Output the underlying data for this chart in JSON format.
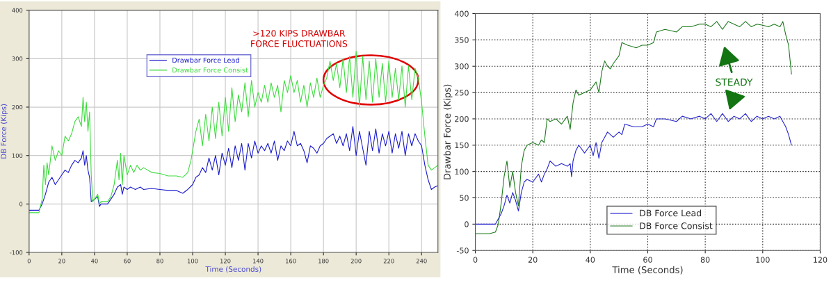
{
  "chart_data": [
    {
      "type": "line",
      "xlabel": "Time (Seconds)",
      "ylabel": "DB Force (Kips)",
      "xlim": [
        0,
        250
      ],
      "xticks": [
        0,
        20,
        40,
        60,
        80,
        100,
        120,
        140,
        160,
        180,
        200,
        220,
        240
      ],
      "ylim": [
        -100,
        400
      ],
      "yticks": [
        -100,
        0,
        100,
        200,
        300,
        400
      ],
      "grid": true,
      "legend": "top left",
      "annotations": [
        ">120 KIPS DRAWBAR\nFORCE FLUCTUATIONS"
      ],
      "series": [
        {
          "name": "Drawbar Force Lead",
          "color": "#1a1acc",
          "x": [
            0,
            6,
            8,
            10,
            12,
            14,
            16,
            18,
            20,
            22,
            24,
            26,
            28,
            30,
            32,
            33,
            34,
            35,
            36,
            37,
            38,
            40,
            42,
            43,
            44,
            48,
            52,
            54,
            56,
            57,
            58,
            60,
            62,
            65,
            68,
            70,
            75,
            80,
            85,
            90,
            94,
            97,
            100,
            102,
            104,
            106,
            108,
            110,
            112,
            114,
            116,
            118,
            120,
            122,
            124,
            126,
            128,
            130,
            132,
            134,
            136,
            138,
            140,
            142,
            144,
            146,
            148,
            150,
            152,
            154,
            156,
            158,
            160,
            162,
            164,
            166,
            168,
            170,
            172,
            174,
            176,
            178,
            180,
            182,
            184,
            186,
            188,
            190,
            192,
            194,
            196,
            198,
            200,
            202,
            204,
            206,
            208,
            210,
            212,
            214,
            216,
            218,
            220,
            222,
            224,
            226,
            228,
            230,
            232,
            234,
            236,
            238,
            240,
            242,
            244,
            246,
            248,
            250
          ],
          "values": [
            -13,
            -13,
            0,
            20,
            45,
            55,
            40,
            50,
            60,
            70,
            65,
            80,
            90,
            85,
            95,
            110,
            80,
            100,
            70,
            55,
            5,
            10,
            15,
            -5,
            0,
            0,
            20,
            35,
            40,
            20,
            35,
            30,
            35,
            30,
            35,
            30,
            32,
            30,
            28,
            28,
            22,
            30,
            40,
            55,
            60,
            75,
            65,
            95,
            70,
            100,
            60,
            105,
            80,
            115,
            75,
            120,
            90,
            125,
            70,
            125,
            95,
            130,
            105,
            120,
            110,
            125,
            105,
            130,
            90,
            120,
            110,
            130,
            120,
            150,
            120,
            125,
            110,
            85,
            120,
            115,
            105,
            120,
            125,
            135,
            140,
            145,
            125,
            140,
            120,
            145,
            110,
            160,
            100,
            150,
            115,
            80,
            150,
            110,
            155,
            105,
            145,
            120,
            150,
            105,
            145,
            115,
            150,
            100,
            145,
            120,
            145,
            130,
            120,
            80,
            50,
            30,
            35,
            38
          ]
        },
        {
          "name": "Drawbar Force Consist",
          "color": "#3ddc3d",
          "x": [
            0,
            6,
            8,
            9,
            10,
            11,
            12,
            14,
            16,
            18,
            20,
            22,
            24,
            26,
            28,
            30,
            32,
            33,
            34,
            35,
            36,
            37,
            38,
            39,
            40,
            42,
            43,
            44,
            48,
            50,
            52,
            54,
            55,
            56,
            57,
            58,
            60,
            62,
            64,
            66,
            68,
            70,
            75,
            80,
            85,
            90,
            94,
            97,
            99,
            100,
            102,
            104,
            106,
            108,
            110,
            112,
            114,
            116,
            118,
            120,
            122,
            124,
            126,
            128,
            130,
            132,
            134,
            136,
            138,
            140,
            142,
            144,
            146,
            148,
            150,
            152,
            154,
            156,
            158,
            160,
            162,
            164,
            166,
            168,
            170,
            172,
            174,
            176,
            178,
            180,
            182,
            184,
            186,
            188,
            190,
            192,
            194,
            196,
            198,
            200,
            202,
            204,
            206,
            208,
            210,
            212,
            214,
            216,
            218,
            220,
            222,
            224,
            226,
            228,
            230,
            232,
            234,
            236,
            238,
            240,
            242,
            244,
            246,
            248,
            250
          ],
          "values": [
            -18,
            -18,
            10,
            80,
            40,
            85,
            60,
            120,
            90,
            110,
            100,
            140,
            130,
            145,
            170,
            180,
            160,
            220,
            170,
            210,
            150,
            190,
            60,
            5,
            10,
            20,
            0,
            5,
            5,
            15,
            40,
            90,
            50,
            105,
            40,
            100,
            60,
            80,
            65,
            80,
            70,
            75,
            65,
            63,
            58,
            58,
            55,
            65,
            90,
            110,
            150,
            175,
            120,
            185,
            130,
            200,
            135,
            210,
            140,
            220,
            150,
            240,
            170,
            225,
            190,
            250,
            180,
            255,
            200,
            230,
            210,
            245,
            210,
            250,
            220,
            245,
            190,
            255,
            230,
            265,
            230,
            255,
            210,
            245,
            200,
            250,
            220,
            260,
            220,
            245,
            260,
            295,
            255,
            290,
            240,
            300,
            230,
            305,
            220,
            315,
            200,
            305,
            215,
            295,
            210,
            300,
            220,
            290,
            210,
            295,
            220,
            280,
            215,
            285,
            200,
            285,
            215,
            280,
            260,
            210,
            140,
            80,
            70,
            75,
            80
          ]
        }
      ]
    },
    {
      "type": "line",
      "xlabel": "Time (Seconds)",
      "ylabel": "Drawbar Force (Kips)",
      "xlim": [
        0,
        120
      ],
      "xticks": [
        0,
        20,
        40,
        60,
        80,
        100,
        120
      ],
      "ylim": [
        -50,
        400
      ],
      "yticks": [
        -50,
        0,
        50,
        100,
        150,
        200,
        250,
        300,
        350,
        400
      ],
      "grid": true,
      "legend": "bottom",
      "annotations": [
        "STEADY"
      ],
      "series": [
        {
          "name": "DB Force Lead",
          "color": "#2424cc",
          "x": [
            0,
            7,
            8,
            9,
            10,
            11,
            12,
            13,
            14,
            15,
            16,
            17,
            18,
            20,
            22,
            23,
            24,
            25,
            26,
            28,
            30,
            32,
            33,
            33.5,
            34,
            35,
            36,
            38,
            40,
            41,
            42,
            43,
            44,
            45,
            46,
            48,
            50,
            51,
            52,
            55,
            58,
            60,
            62,
            63,
            66,
            70,
            72,
            75,
            78,
            80,
            82,
            84,
            86,
            88,
            90,
            92,
            94,
            96,
            98,
            100,
            102,
            104,
            106,
            107,
            108,
            109,
            110
          ],
          "values": [
            0,
            0,
            10,
            20,
            35,
            55,
            40,
            60,
            45,
            25,
            60,
            80,
            85,
            80,
            95,
            80,
            95,
            105,
            120,
            110,
            115,
            110,
            115,
            90,
            120,
            140,
            150,
            135,
            150,
            130,
            155,
            125,
            155,
            165,
            175,
            165,
            175,
            170,
            190,
            185,
            185,
            190,
            185,
            200,
            200,
            195,
            205,
            200,
            205,
            200,
            210,
            195,
            210,
            195,
            205,
            200,
            210,
            195,
            205,
            200,
            205,
            200,
            205,
            195,
            185,
            170,
            150
          ]
        },
        {
          "name": "DB Force Consist",
          "color": "#1e7a1e",
          "x": [
            0,
            5,
            7,
            8,
            9,
            10,
            11,
            12,
            13,
            14,
            15,
            16,
            17,
            18,
            20,
            22,
            23,
            24,
            25,
            26,
            28,
            30,
            32,
            33,
            34,
            35,
            36,
            38,
            40,
            42,
            43,
            44,
            45,
            46,
            47,
            48,
            50,
            51,
            53,
            56,
            58,
            60,
            62,
            63,
            66,
            70,
            72,
            75,
            78,
            80,
            82,
            84,
            86,
            88,
            90,
            92,
            94,
            96,
            98,
            100,
            102,
            104,
            106,
            107,
            108,
            109,
            110
          ],
          "values": [
            -18,
            -18,
            -15,
            0,
            40,
            90,
            120,
            70,
            100,
            60,
            35,
            110,
            140,
            150,
            155,
            150,
            160,
            155,
            200,
            195,
            200,
            190,
            205,
            180,
            230,
            255,
            245,
            250,
            255,
            270,
            250,
            290,
            310,
            300,
            295,
            305,
            320,
            345,
            340,
            335,
            340,
            340,
            345,
            365,
            370,
            365,
            375,
            375,
            380,
            380,
            375,
            385,
            370,
            385,
            380,
            375,
            385,
            375,
            380,
            378,
            375,
            380,
            375,
            385,
            360,
            340,
            285
          ]
        }
      ]
    }
  ]
}
